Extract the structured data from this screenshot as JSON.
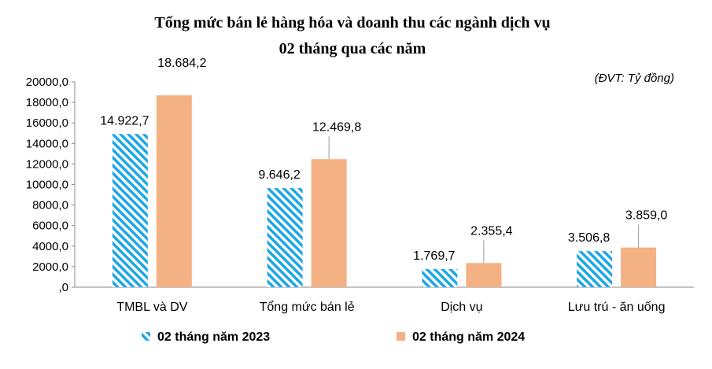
{
  "chart_data": {
    "type": "bar",
    "title_line1": "Tổng mức bán lẻ hàng hóa và doanh thu các ngành dịch vụ",
    "title_line2": "02 tháng qua các năm",
    "unit_note": "(ĐVT: Tỷ đồng)",
    "categories": [
      "TMBL và DV",
      "Tổng mức bán lẻ",
      "Dịch vụ",
      "Lưu trú - ăn uống"
    ],
    "series": [
      {
        "name": "02 tháng năm 2023",
        "values": [
          14922.7,
          9646.2,
          1769.7,
          3506.8
        ],
        "labels": [
          "14.922,7",
          "9.646,2",
          "1.769,7",
          "3.506,8"
        ],
        "color": "#1aa6e8",
        "pattern": "diagonal-hatch"
      },
      {
        "name": "02 tháng năm 2024",
        "values": [
          18684.2,
          12469.8,
          2355.4,
          3859.0
        ],
        "labels": [
          "18.684,2",
          "12.469,8",
          "2.355,4",
          "3.859,0"
        ],
        "color": "#f4b183",
        "pattern": "solid"
      }
    ],
    "y_ticks": [
      0,
      2000,
      4000,
      6000,
      8000,
      10000,
      12000,
      14000,
      16000,
      18000,
      20000
    ],
    "y_tick_labels": [
      ",0",
      "2000,0",
      "4000,0",
      "6000,0",
      "8000,0",
      "10000,0",
      "12000,0",
      "14000,0",
      "16000,0",
      "18000,0",
      "20000,0"
    ],
    "ylim": [
      0,
      20000
    ],
    "grid": false,
    "legend_position": "bottom"
  }
}
